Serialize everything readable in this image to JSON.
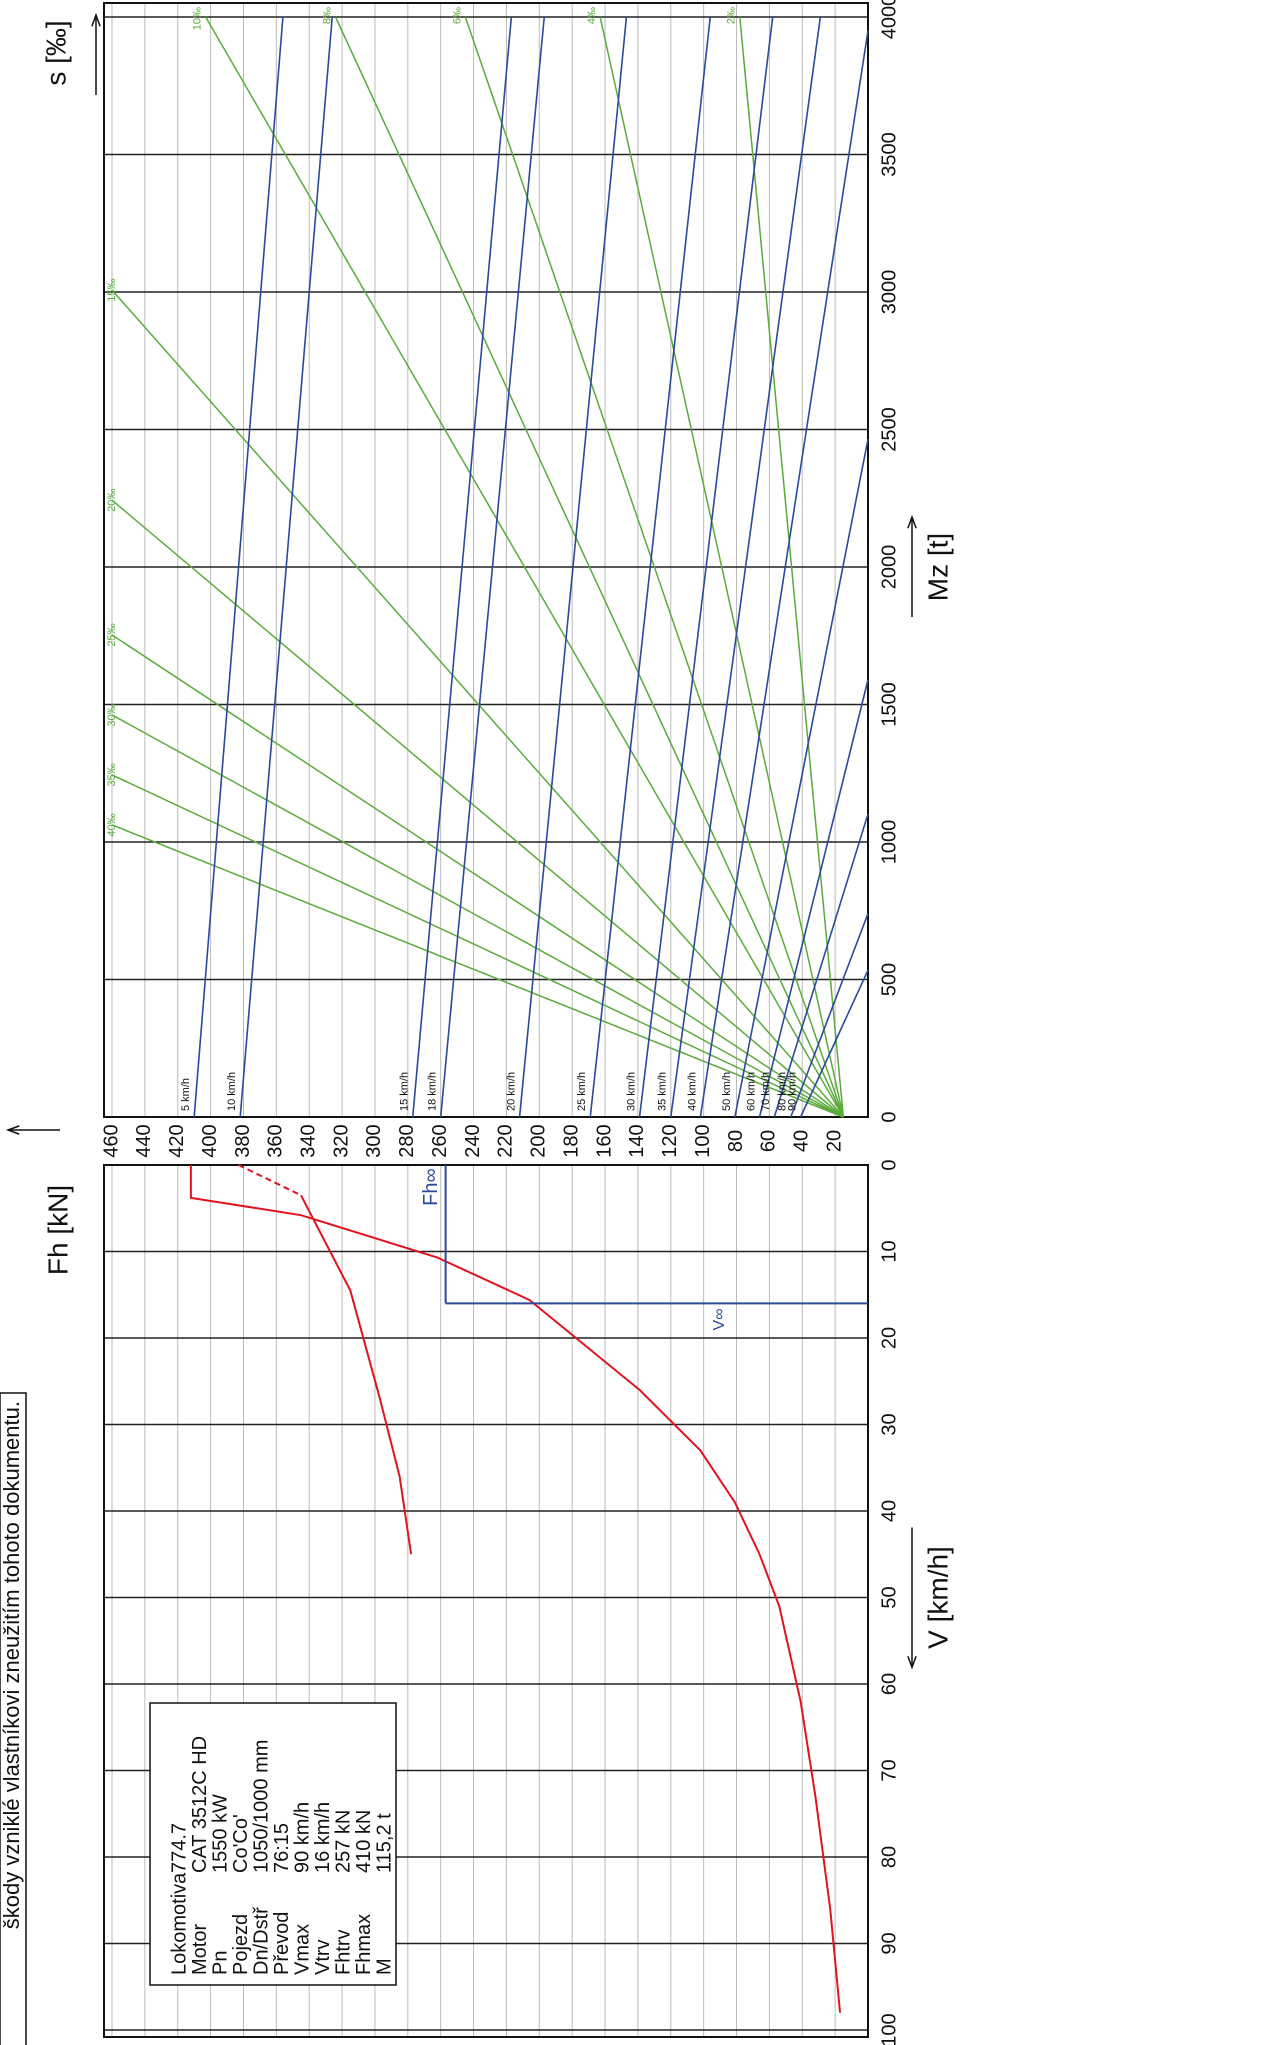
{
  "disclaimer": "škody vzniklé vlastníkovi zneužitím tohoto dokumentu.",
  "chart_data": [
    {
      "type": "line",
      "xlabel": "V [km/h]",
      "ylabel": "Fh [kN]",
      "x_reversed": true,
      "xlim": [
        0,
        100
      ],
      "xticks": [
        0,
        10,
        20,
        30,
        40,
        50,
        60,
        70,
        80,
        90,
        100
      ],
      "ylim": [
        0,
        460
      ],
      "yticks": [
        20,
        40,
        60,
        80,
        100,
        120,
        140,
        160,
        180,
        200,
        220,
        240,
        260,
        280,
        300,
        320,
        340,
        360,
        380,
        400,
        420,
        440,
        460
      ],
      "grid": true,
      "series": [
        {
          "color": "#e0141e",
          "x": [
            0,
            3.8,
            5.8,
            10.7,
            15.6,
            26,
            33,
            39,
            45,
            51,
            62,
            73,
            86,
            98
          ],
          "values": [
            412,
            412,
            345,
            262,
            206,
            139,
            102,
            81,
            66,
            54,
            41,
            32,
            23,
            17
          ]
        },
        {
          "color": "#e0141e",
          "dashed": true,
          "x": [
            0,
            3.5
          ],
          "values": [
            383,
            345
          ]
        },
        {
          "color": "#e0141e",
          "x": [
            3.5,
            14.5,
            27,
            36,
            45
          ],
          "values": [
            345,
            315,
            297,
            285,
            278
          ]
        }
      ],
      "fh_inf": {
        "label": "Fh∞",
        "value": 257,
        "color": "#2b4a9c"
      },
      "v_inf": {
        "label": "V∞",
        "value": 16,
        "color": "#2b4a9c"
      },
      "info": [
        [
          "Lokomotiva",
          "774.7"
        ],
        [
          "Motor",
          "CAT 3512C HD"
        ],
        [
          "Pn",
          "1550 kW"
        ],
        [
          "Pojezd",
          "Co'Co'"
        ],
        [
          "Dn/Dstř",
          "1050/1000 mm"
        ],
        [
          "Převod",
          "76:15"
        ],
        [
          "Vmax",
          "90 km/h"
        ],
        [
          "Vtrv",
          "16 km/h"
        ],
        [
          "Fhtrv",
          "257 kN"
        ],
        [
          "Fhmax",
          "410 kN"
        ],
        [
          "M",
          "115,2 t"
        ]
      ]
    },
    {
      "type": "line",
      "xlabel": "Mz [t]",
      "slabel": "s [‰]",
      "xlim": [
        0,
        4000
      ],
      "xticks": [
        0,
        500,
        1000,
        1500,
        2000,
        2500,
        3000,
        3500,
        4000
      ],
      "ylim": [
        0,
        460
      ],
      "grid": true,
      "gradient_color": "#5aab3c",
      "speed_color": "#2b4a9c",
      "gradient_lines": [
        {
          "label": "40‰",
          "x": [
            0,
            1062
          ],
          "values": [
            15,
            460
          ]
        },
        {
          "label": "35‰",
          "x": [
            0,
            1244
          ],
          "values": [
            15,
            460
          ]
        },
        {
          "label": "30‰",
          "x": [
            0,
            1462
          ],
          "values": [
            15,
            460
          ]
        },
        {
          "label": "25‰",
          "x": [
            0,
            1753
          ],
          "values": [
            15,
            460
          ]
        },
        {
          "label": "20‰",
          "x": [
            0,
            2243
          ],
          "values": [
            15,
            460
          ]
        },
        {
          "label": "15‰",
          "x": [
            0,
            3007
          ],
          "values": [
            15,
            460
          ]
        },
        {
          "label": "10‰",
          "x": [
            0,
            4000
          ],
          "values": [
            15,
            403
          ]
        },
        {
          "label": "8‰",
          "x": [
            0,
            4000
          ],
          "values": [
            15,
            324
          ]
        },
        {
          "label": "6‰",
          "x": [
            0,
            4000
          ],
          "values": [
            15,
            245
          ]
        },
        {
          "label": "4‰",
          "x": [
            0,
            4000
          ],
          "values": [
            15,
            163
          ]
        },
        {
          "label": "2‰",
          "x": [
            0,
            4000
          ],
          "values": [
            15,
            78
          ]
        }
      ],
      "speed_lines": [
        {
          "label": "5 km/h",
          "x": [
            0,
            4000
          ],
          "values": [
            410,
            356
          ]
        },
        {
          "label": "10 km/h",
          "x": [
            0,
            4000
          ],
          "values": [
            382,
            326
          ]
        },
        {
          "label": "15 km/h",
          "x": [
            0,
            4000
          ],
          "values": [
            277,
            217
          ]
        },
        {
          "label": "18 km/h",
          "x": [
            0,
            4000
          ],
          "values": [
            260,
            197
          ]
        },
        {
          "label": "20 km/h",
          "x": [
            0,
            4000
          ],
          "values": [
            212,
            147
          ]
        },
        {
          "label": "25 km/h",
          "x": [
            0,
            4000
          ],
          "values": [
            169,
            96
          ]
        },
        {
          "label": "30 km/h",
          "x": [
            0,
            4000
          ],
          "values": [
            139,
            58
          ]
        },
        {
          "label": "35 km/h",
          "x": [
            0,
            4000
          ],
          "values": [
            120,
            29
          ]
        },
        {
          "label": "40 km/h",
          "x": [
            0,
            3950
          ],
          "values": [
            102,
            0
          ]
        },
        {
          "label": "50 km/h",
          "x": [
            0,
            2465
          ],
          "values": [
            81,
            0
          ]
        },
        {
          "label": "60 km/h",
          "x": [
            0,
            1590
          ],
          "values": [
            66,
            0
          ]
        },
        {
          "label": "70 km/h",
          "x": [
            0,
            1102
          ],
          "values": [
            57,
            0
          ]
        },
        {
          "label": "80 km/h",
          "x": [
            0,
            740
          ],
          "values": [
            47,
            0
          ]
        },
        {
          "label": "90 km/h",
          "x": [
            0,
            534
          ],
          "values": [
            41,
            0
          ]
        }
      ]
    }
  ]
}
